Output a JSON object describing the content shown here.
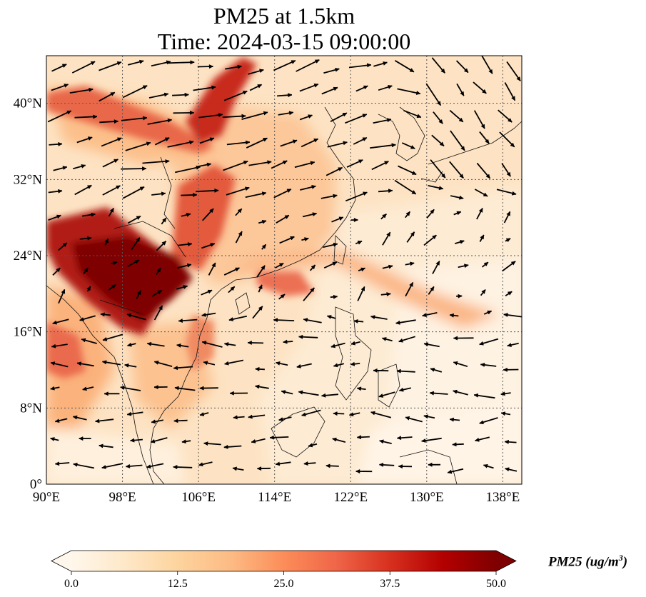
{
  "title": {
    "line1": "PM25 at 1.5km",
    "line2": "Time: 2024-03-15 09:00:00"
  },
  "map": {
    "lon_range": [
      90,
      140
    ],
    "lat_range": [
      0,
      45
    ],
    "gridlines": true,
    "lon_ticks": [
      "90°E",
      "98°E",
      "106°E",
      "114°E",
      "122°E",
      "130°E",
      "138°E"
    ],
    "lat_ticks": [
      "0°",
      "8°N",
      "16°N",
      "24°N",
      "32°N",
      "40°N"
    ],
    "variable": "PM25",
    "level": "1.5km",
    "vectors": "wind arrows",
    "colormap": "OrRd"
  },
  "colorbar": {
    "min": 0.0,
    "max": 50.0,
    "ticks": [
      "0.0",
      "12.5",
      "25.0",
      "37.5",
      "50.0"
    ],
    "extend": "both",
    "label_main": "PM25 (ug/m",
    "label_sup": "3",
    "label_end": ")",
    "colors": [
      "#fff7ec",
      "#fee8c8",
      "#fdd49e",
      "#fdbb84",
      "#fc8d59",
      "#ef6548",
      "#d7301f",
      "#b30000",
      "#7f0000"
    ]
  }
}
